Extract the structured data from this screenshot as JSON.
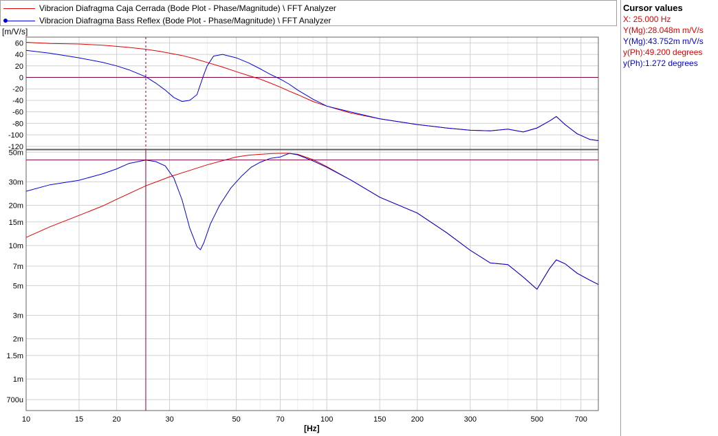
{
  "legend": [
    {
      "label": "Vibracion Diafragma Caja Cerrada (Bode Plot - Phase/Magnitude) \\ FFT Analyzer",
      "color": "#e00000",
      "marker": false
    },
    {
      "label": "Vibracion Diafragma Bass Reflex (Bode Plot - Phase/Magnitude) \\ FFT Analyzer",
      "color": "#0000e0",
      "marker": true
    }
  ],
  "cursor_panel": {
    "title": "Cursor values",
    "x": "X: 25.000 Hz",
    "mag_red": "Y(Mg):28.048m m/V/s",
    "mag_blue": "Y(Mg):43.752m m/V/s",
    "ph_red": "y(Ph):49.200 degrees",
    "ph_blue": "y(Ph):1.272 degrees"
  },
  "colors": {
    "red": "#e00000",
    "blue": "#0000e0",
    "cursor": "#800040",
    "grid": "#d0d0d0"
  },
  "units": {
    "y": "[m/V/s]",
    "x": "[Hz]"
  },
  "chart_data": [
    {
      "type": "line",
      "name_panel": "phase",
      "x_scale": "log",
      "xlim": [
        10,
        800
      ],
      "ylim": [
        -125,
        70
      ],
      "yticks": [
        60,
        40,
        20,
        0,
        -20,
        -40,
        -60,
        -80,
        -100,
        -120
      ],
      "ytick_labels": [
        "60",
        "40",
        "20",
        "0",
        "-20",
        "-40",
        "-60",
        "-80",
        "-100",
        "-120"
      ],
      "series": [
        {
          "name": "Vibracion Diafragma Caja Cerrada",
          "color": "#e00000",
          "x": [
            10,
            12,
            15,
            18,
            20,
            22,
            25,
            28,
            30,
            33,
            36,
            40,
            45,
            50,
            55,
            60,
            65,
            70,
            75,
            80,
            90,
            100,
            120,
            150,
            200,
            250,
            300,
            350,
            400,
            450,
            500,
            550,
            580,
            620,
            680,
            750,
            800
          ],
          "y": [
            61,
            59,
            58,
            56,
            54,
            52,
            49,
            45,
            42,
            38,
            33,
            26,
            18,
            10,
            3,
            -3,
            -10,
            -17,
            -24,
            -30,
            -42,
            -50,
            -62,
            -72,
            -82,
            -88,
            -92,
            -93,
            -90,
            -95,
            -88,
            -76,
            -68,
            -82,
            -98,
            -108,
            -110
          ]
        },
        {
          "name": "Vibracion Diafragma Bass Reflex",
          "color": "#0000e0",
          "x": [
            10,
            12,
            15,
            18,
            20,
            22,
            25,
            27,
            29,
            31,
            33,
            35,
            37,
            39,
            40,
            42,
            45,
            50,
            55,
            60,
            65,
            70,
            75,
            80,
            90,
            100,
            120,
            150,
            200,
            250,
            300,
            350,
            400,
            450,
            500,
            550,
            580,
            620,
            680,
            750,
            800
          ],
          "y": [
            47,
            42,
            34,
            26,
            20,
            13,
            1,
            -10,
            -22,
            -35,
            -42,
            -40,
            -30,
            5,
            20,
            37,
            40,
            34,
            25,
            15,
            5,
            -3,
            -12,
            -22,
            -38,
            -50,
            -60,
            -72,
            -82,
            -88,
            -92,
            -93,
            -90,
            -95,
            -88,
            -76,
            -68,
            -82,
            -98,
            -108,
            -110
          ]
        }
      ]
    },
    {
      "type": "line",
      "name_panel": "magnitude",
      "x_scale": "log",
      "y_scale": "log",
      "xlim": [
        10,
        800
      ],
      "ylim": [
        0.00058,
        0.052
      ],
      "xticks": [
        10,
        15,
        20,
        30,
        50,
        70,
        100,
        150,
        200,
        300,
        500,
        700
      ],
      "xtick_labels": [
        "10",
        "15",
        "20",
        "30",
        "50",
        "70",
        "100",
        "150",
        "200",
        "300",
        "500",
        "700"
      ],
      "yticks": [
        0.05,
        0.03,
        0.02,
        0.015,
        0.01,
        0.007,
        0.005,
        0.003,
        0.002,
        0.0015,
        0.001,
        0.0007
      ],
      "ytick_labels": [
        "50m",
        "30m",
        "20m",
        "15m",
        "10m",
        "7m",
        "5m",
        "3m",
        "2m",
        "1.5m",
        "1m",
        "700u"
      ],
      "series": [
        {
          "name": "Vibracion Diafragma Caja Cerrada",
          "color": "#e00000",
          "x": [
            10,
            12,
            15,
            18,
            20,
            22,
            25,
            28,
            30,
            35,
            40,
            45,
            50,
            55,
            60,
            65,
            70,
            75,
            80,
            90,
            100,
            120,
            150,
            200,
            250,
            300,
            350,
            400,
            450,
            500,
            550,
            580,
            620,
            680,
            750,
            800
          ],
          "y": [
            0.0115,
            0.0138,
            0.0168,
            0.0198,
            0.0222,
            0.0245,
            0.028,
            0.0308,
            0.0327,
            0.0365,
            0.0402,
            0.0432,
            0.046,
            0.0475,
            0.0482,
            0.0488,
            0.049,
            0.049,
            0.0482,
            0.044,
            0.039,
            0.031,
            0.023,
            0.0175,
            0.0125,
            0.0092,
            0.0074,
            0.0072,
            0.0058,
            0.0047,
            0.0067,
            0.0078,
            0.0073,
            0.0062,
            0.0055,
            0.0051
          ]
        },
        {
          "name": "Vibracion Diafragma Bass Reflex",
          "color": "#0000e0",
          "x": [
            10,
            12,
            15,
            18,
            20,
            22,
            25,
            27,
            29,
            31,
            33,
            35,
            37,
            38,
            39,
            41,
            44,
            48,
            52,
            56,
            60,
            65,
            70,
            75,
            80,
            90,
            100,
            120,
            150,
            200,
            250,
            300,
            350,
            400,
            450,
            500,
            550,
            580,
            620,
            680,
            750,
            800
          ],
          "y": [
            0.0255,
            0.0285,
            0.0308,
            0.0345,
            0.0375,
            0.0412,
            0.0437,
            0.0425,
            0.0395,
            0.032,
            0.022,
            0.0135,
            0.0098,
            0.0093,
            0.0105,
            0.0145,
            0.02,
            0.027,
            0.033,
            0.0385,
            0.042,
            0.045,
            0.046,
            0.049,
            0.0478,
            0.043,
            0.0385,
            0.031,
            0.023,
            0.0175,
            0.0125,
            0.0092,
            0.0074,
            0.0072,
            0.0058,
            0.0047,
            0.0067,
            0.0078,
            0.0073,
            0.0062,
            0.0055,
            0.0051
          ]
        }
      ],
      "cursor": {
        "x": 25
      }
    }
  ]
}
